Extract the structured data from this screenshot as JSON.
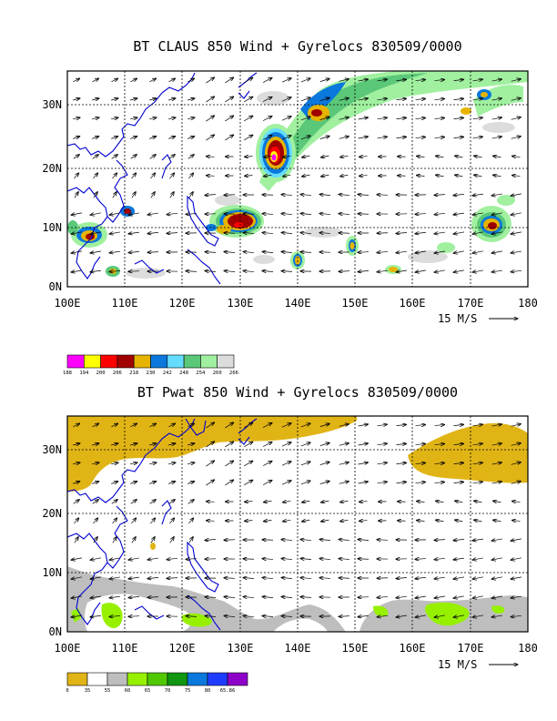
{
  "panels": [
    {
      "title": "BT CLAUS 850 Wind + Gyrelocs 830509/0000",
      "x_labels": [
        "100E",
        "110E",
        "120E",
        "130E",
        "140E",
        "150E",
        "160E",
        "170E",
        "180"
      ],
      "y_labels": [
        "0N",
        "10N",
        "20N",
        "30N"
      ],
      "vector_ref": "15 M/S",
      "colorbar_labels": [
        "188",
        "194",
        "200",
        "206",
        "218",
        "230",
        "242",
        "248",
        "254",
        "260",
        "266"
      ],
      "colorbar_colors": [
        "#ff00ff",
        "#ffff00",
        "#ff0000",
        "#a00000",
        "#e6b400",
        "#0a78dc",
        "#64dcff",
        "#5ac878",
        "#a0f0a0",
        "#dcdcdc"
      ]
    },
    {
      "title": "BT Pwat 850 Wind + Gyrelocs 830509/0000",
      "x_labels": [
        "100E",
        "110E",
        "120E",
        "130E",
        "140E",
        "150E",
        "160E",
        "170E",
        "180"
      ],
      "y_labels": [
        "0N",
        "10N",
        "20N",
        "30N"
      ],
      "vector_ref": "15 M/S",
      "colorbar_labels": [
        "0",
        "35",
        "55",
        "60",
        "65",
        "70",
        "75",
        "80",
        "65.86"
      ],
      "colorbar_colors": [
        "#e1b416",
        "#ffffff",
        "#bebebe",
        "#96f000",
        "#50c800",
        "#109610",
        "#0a78dc",
        "#1e3cff",
        "#8c00c8"
      ]
    }
  ]
}
